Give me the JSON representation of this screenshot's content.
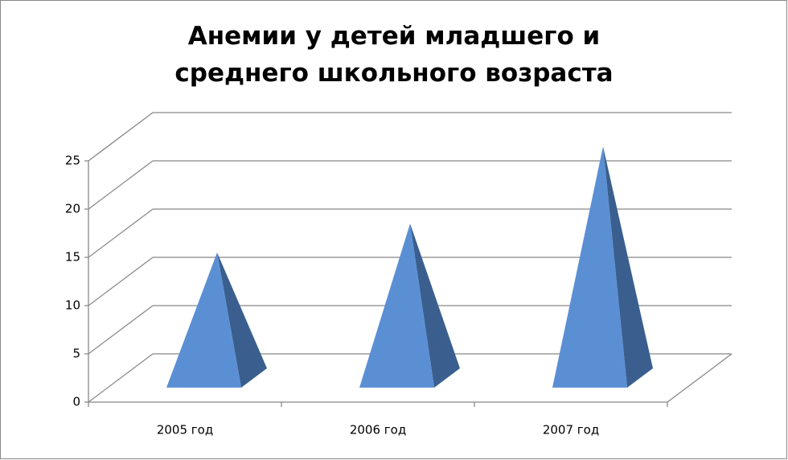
{
  "chart_data": {
    "type": "pyramid3d",
    "title": "Анемии у детей младшего и среднего школьного возраста",
    "categories": [
      "2005 год",
      "2006 год",
      "2007 год"
    ],
    "values": [
      13,
      16,
      24
    ],
    "color": "#5b8fd4",
    "side_color": "#3a5f8f",
    "ylim": [
      0,
      25
    ],
    "yticks": [
      0,
      5,
      10,
      15,
      20,
      25
    ],
    "grid": true
  }
}
